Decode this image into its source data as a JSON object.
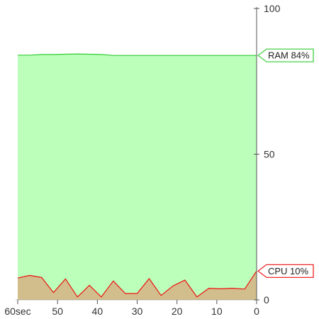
{
  "chart_data": {
    "type": "area",
    "x_unit": "sec",
    "x": [
      60,
      57,
      54,
      51,
      48,
      45,
      42,
      39,
      36,
      33,
      30,
      27,
      24,
      21,
      18,
      15,
      12,
      9,
      6,
      3,
      0
    ],
    "xlim": [
      60,
      0
    ],
    "ylim": [
      0,
      100
    ],
    "x_ticks": [
      {
        "value": 60,
        "label": "60sec"
      },
      {
        "value": 50,
        "label": "50"
      },
      {
        "value": 40,
        "label": "40"
      },
      {
        "value": 30,
        "label": "30"
      },
      {
        "value": 20,
        "label": "20"
      },
      {
        "value": 10,
        "label": "10"
      },
      {
        "value": 0,
        "label": "0"
      }
    ],
    "y_ticks": [
      {
        "value": 100,
        "label": "100"
      },
      {
        "value": 50,
        "label": "50"
      },
      {
        "value": 0,
        "label": "0"
      }
    ],
    "y_axis_position": "right",
    "grid": false,
    "series": [
      {
        "name": "RAM",
        "label": "RAM 84%",
        "values": [
          84,
          84,
          84.2,
          84.2,
          84.3,
          84.4,
          84.3,
          84.2,
          83.9,
          83.9,
          83.9,
          83.9,
          83.9,
          83.9,
          83.9,
          83.9,
          83.9,
          83.9,
          83.9,
          83.9,
          83.9
        ],
        "line_color": "#33cc33",
        "fill_color": "#bbffbb"
      },
      {
        "name": "CPU",
        "label": "CPU 10%",
        "values": [
          7.5,
          8.4,
          7.7,
          2.5,
          7.2,
          1,
          5,
          1,
          6.5,
          2.2,
          2.2,
          7.3,
          1.5,
          4.8,
          6.8,
          1,
          4,
          3.8,
          4,
          3.7,
          9.9
        ],
        "line_color": "#ee1111",
        "fill_color": "#d2be8c"
      }
    ]
  }
}
